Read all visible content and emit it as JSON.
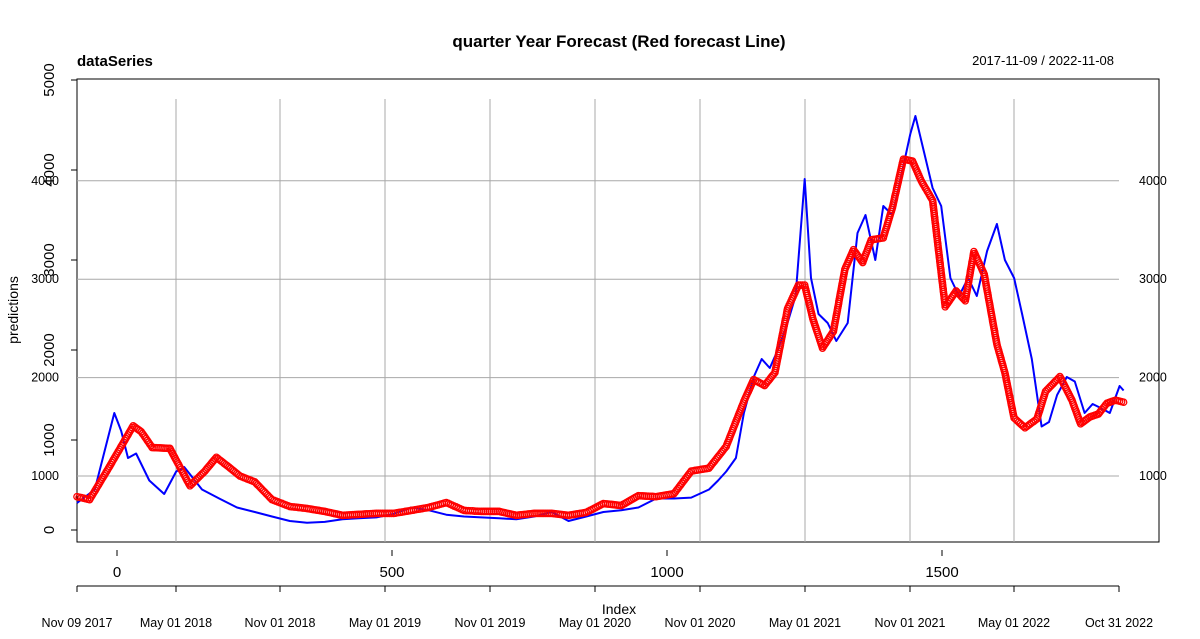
{
  "chart_data": {
    "type": "line",
    "title": "quarter Year Forecast (Red forecast Line)",
    "series_label": "dataSeries",
    "date_range": "2017-11-09 / 2022-11-08",
    "xlabel": "Index",
    "ylabel": "predictions",
    "grid": true,
    "x_date_ticks": [
      "Nov 09 2017",
      "May 01 2018",
      "Nov 01 2018",
      "May 01 2019",
      "Nov 01 2019",
      "May 01 2020",
      "Nov 01 2020",
      "May 01 2021",
      "Nov 01 2021",
      "May 01 2022",
      "Oct 31 2022"
    ],
    "x_index_ticks": [
      "0",
      "500",
      "1000",
      "1500"
    ],
    "y_left_ticks": [
      "0",
      "1000",
      "2000",
      "3000",
      "4000",
      "5000"
    ],
    "y_left_overlay_ticks": [
      "1000",
      "2000",
      "3000",
      "4000"
    ],
    "y_right_ticks": [
      "1000",
      "2000",
      "3000",
      "4000"
    ],
    "ylim_left": [
      0,
      5000
    ],
    "ylim_right": [
      370,
      4800
    ],
    "series": [
      {
        "name": "dataSeries",
        "color": "#0000ff",
        "style": "line",
        "x": [
          "2017-11-09",
          "2017-12-10",
          "2018-01-13",
          "2018-01-25",
          "2018-02-06",
          "2018-02-20",
          "2018-03-15",
          "2018-04-10",
          "2018-05-01",
          "2018-05-15",
          "2018-06-15",
          "2018-07-15",
          "2018-08-15",
          "2018-09-15",
          "2018-10-15",
          "2018-11-15",
          "2018-12-15",
          "2019-01-15",
          "2019-02-15",
          "2019-03-15",
          "2019-04-15",
          "2019-05-15",
          "2019-06-15",
          "2019-07-15",
          "2019-08-15",
          "2019-09-15",
          "2019-10-15",
          "2019-11-15",
          "2019-12-15",
          "2020-01-15",
          "2020-02-15",
          "2020-03-15",
          "2020-04-15",
          "2020-05-15",
          "2020-06-15",
          "2020-07-15",
          "2020-08-15",
          "2020-09-15",
          "2020-10-15",
          "2020-11-15",
          "2020-12-01",
          "2020-12-15",
          "2021-01-01",
          "2021-01-15",
          "2021-02-01",
          "2021-02-15",
          "2021-03-01",
          "2021-03-15",
          "2021-04-01",
          "2021-04-15",
          "2021-05-01",
          "2021-05-12",
          "2021-05-25",
          "2021-06-10",
          "2021-06-25",
          "2021-07-15",
          "2021-08-01",
          "2021-08-15",
          "2021-09-01",
          "2021-09-15",
          "2021-10-01",
          "2021-10-15",
          "2021-11-01",
          "2021-11-10",
          "2021-11-25",
          "2021-12-10",
          "2021-12-25",
          "2022-01-10",
          "2022-01-25",
          "2022-02-10",
          "2022-02-25",
          "2022-03-15",
          "2022-04-01",
          "2022-04-15",
          "2022-05-01",
          "2022-05-15",
          "2022-06-01",
          "2022-06-18",
          "2022-07-01",
          "2022-07-15",
          "2022-08-01",
          "2022-08-15",
          "2022-09-01",
          "2022-09-15",
          "2022-10-01",
          "2022-10-15",
          "2022-11-01",
          "2022-11-08"
        ],
        "y": [
          300,
          450,
          1300,
          1100,
          800,
          850,
          550,
          400,
          650,
          700,
          450,
          350,
          250,
          200,
          150,
          100,
          80,
          90,
          120,
          130,
          140,
          180,
          250,
          220,
          170,
          150,
          140,
          130,
          120,
          150,
          200,
          100,
          150,
          200,
          220,
          250,
          350,
          350,
          360,
          450,
          550,
          650,
          800,
          1300,
          1700,
          1900,
          1800,
          2000,
          2300,
          2600,
          3900,
          2800,
          2400,
          2300,
          2100,
          2300,
          3300,
          3500,
          3000,
          3600,
          3500,
          3900,
          4400,
          4600,
          4200,
          3800,
          3600,
          2800,
          2600,
          2800,
          2600,
          3100,
          3400,
          3000,
          2800,
          2400,
          1900,
          1150,
          1200,
          1500,
          1700,
          1650,
          1300,
          1400,
          1350,
          1300,
          1600,
          1550
        ]
      },
      {
        "name": "forecast",
        "color": "#ff0000",
        "style": "points",
        "x": [
          "2017-11-09",
          "2017-12-01",
          "2018-01-01",
          "2018-01-20",
          "2018-02-15",
          "2018-03-01",
          "2018-03-20",
          "2018-04-20",
          "2018-05-01",
          "2018-05-25",
          "2018-06-20",
          "2018-07-10",
          "2018-08-01",
          "2018-08-20",
          "2018-09-15",
          "2018-10-15",
          "2018-11-15",
          "2018-12-15",
          "2019-01-15",
          "2019-02-15",
          "2019-03-15",
          "2019-04-15",
          "2019-05-15",
          "2019-06-15",
          "2019-07-15",
          "2019-08-15",
          "2019-09-15",
          "2019-10-15",
          "2019-11-15",
          "2019-12-15",
          "2020-01-15",
          "2020-02-15",
          "2020-03-15",
          "2020-04-15",
          "2020-05-15",
          "2020-06-15",
          "2020-07-15",
          "2020-08-15",
          "2020-09-15",
          "2020-10-15",
          "2020-11-15",
          "2020-12-15",
          "2021-01-15",
          "2021-02-01",
          "2021-02-20",
          "2021-03-10",
          "2021-04-01",
          "2021-04-20",
          "2021-05-01",
          "2021-05-15",
          "2021-06-01",
          "2021-06-20",
          "2021-07-10",
          "2021-07-25",
          "2021-08-10",
          "2021-08-25",
          "2021-09-15",
          "2021-10-01",
          "2021-10-20",
          "2021-11-05",
          "2021-11-20",
          "2021-12-10",
          "2022-01-01",
          "2022-01-20",
          "2022-02-05",
          "2022-02-20",
          "2022-03-10",
          "2022-04-01",
          "2022-04-15",
          "2022-05-01",
          "2022-05-20",
          "2022-06-10",
          "2022-06-25",
          "2022-07-20",
          "2022-08-10",
          "2022-08-25",
          "2022-09-10",
          "2022-09-25",
          "2022-10-10",
          "2022-10-25",
          "2022-11-08"
        ],
        "y": [
          790,
          760,
          1060,
          1250,
          1510,
          1450,
          1290,
          1280,
          1160,
          900,
          1050,
          1190,
          1090,
          1000,
          940,
          760,
          690,
          670,
          640,
          600,
          610,
          620,
          620,
          650,
          680,
          730,
          650,
          640,
          640,
          600,
          620,
          620,
          600,
          630,
          720,
          700,
          800,
          790,
          820,
          1050,
          1080,
          1300,
          1760,
          1980,
          1920,
          2050,
          2700,
          2940,
          2940,
          2600,
          2300,
          2470,
          3100,
          3300,
          3170,
          3400,
          3420,
          3730,
          4220,
          4200,
          4000,
          3800,
          2720,
          2880,
          2780,
          3280,
          3050,
          2340,
          2050,
          1590,
          1490,
          1580,
          1860,
          2010,
          1770,
          1530,
          1600,
          1630,
          1740,
          1770,
          1750
        ]
      }
    ]
  }
}
